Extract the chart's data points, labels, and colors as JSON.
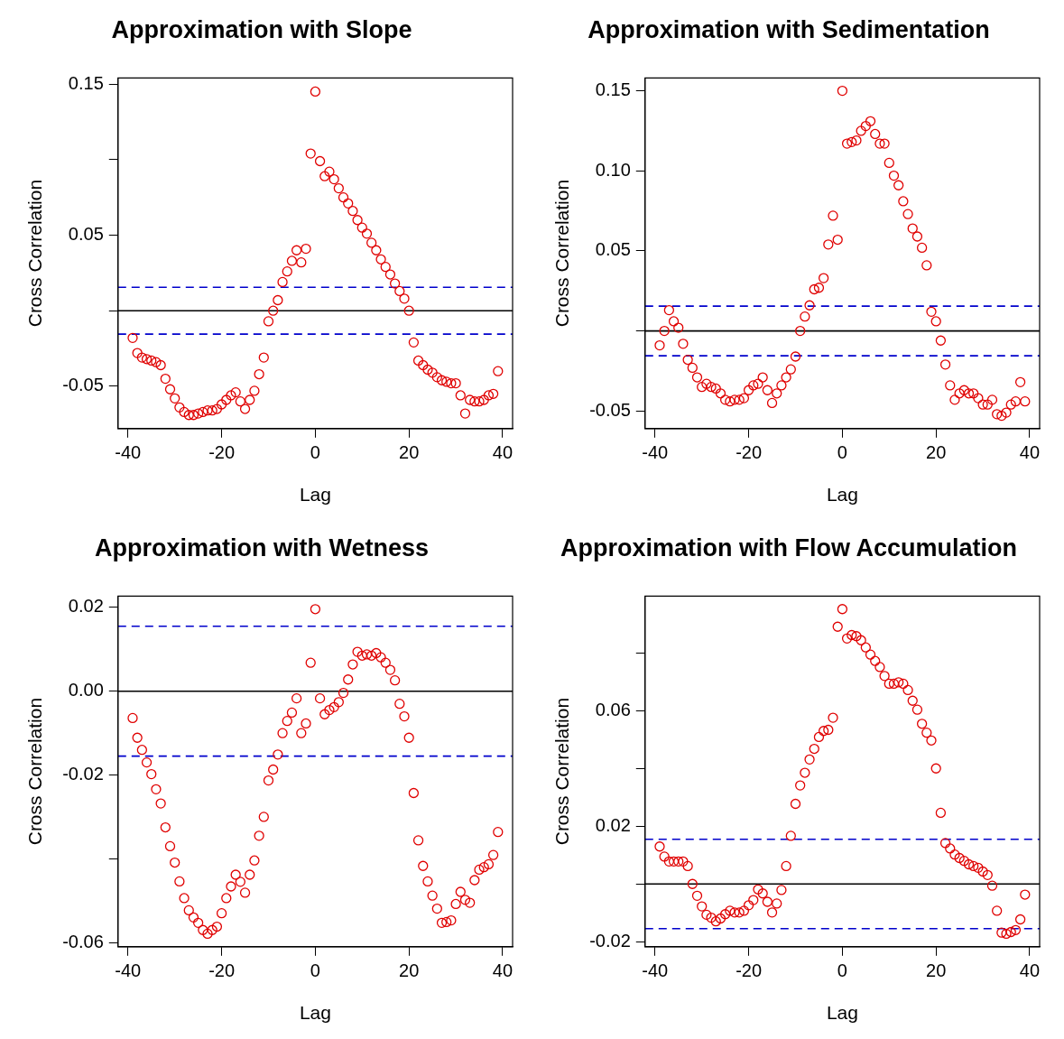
{
  "chart_data": [
    {
      "type": "scatter",
      "title": "Approximation with Slope",
      "xlabel": "Lag",
      "ylabel": "Cross Correlation",
      "marker": "circle",
      "grid": false,
      "x": [
        -39,
        -38,
        -37,
        -36,
        -35,
        -34,
        -33,
        -32,
        -31,
        -30,
        -29,
        -28,
        -27,
        -26,
        -25,
        -24,
        -23,
        -22,
        -21,
        -20,
        -19,
        -18,
        -17,
        -16,
        -15,
        -14,
        -13,
        -12,
        -11,
        -10,
        -9,
        -8,
        -7,
        -6,
        -5,
        -4,
        -3,
        -2,
        -1,
        0,
        1,
        2,
        3,
        4,
        5,
        6,
        7,
        8,
        9,
        10,
        11,
        12,
        13,
        14,
        15,
        16,
        17,
        18,
        19,
        20,
        21,
        22,
        23,
        24,
        25,
        26,
        27,
        28,
        29,
        30,
        31,
        32,
        33,
        34,
        35,
        36,
        37,
        38,
        39
      ],
      "xlim": [
        -42.12,
        42.12
      ],
      "xticks": [
        -40,
        -20,
        0,
        20,
        40
      ],
      "ylim": [
        -0.078,
        0.154
      ],
      "yticks": [
        {
          "value": -0.05,
          "label": "-0.05"
        },
        {
          "value": 0,
          "label": null
        },
        {
          "value": 0.05,
          "label": "0.05"
        },
        {
          "value": 0.1,
          "label": null
        },
        {
          "value": 0.15,
          "label": "0.15"
        }
      ],
      "ref_lines": [
        {
          "axis": "y",
          "value": 0,
          "color": "#000000",
          "line_style": "solid"
        },
        {
          "axis": "y",
          "value": 0.0155,
          "color": "#0000cc",
          "line_style": "dashed"
        },
        {
          "axis": "y",
          "value": -0.0155,
          "color": "#0000cc",
          "line_style": "dashed"
        }
      ],
      "series": [
        {
          "color": "#e00000",
          "values": [
            -0.018,
            -0.028,
            -0.031,
            -0.032,
            -0.033,
            -0.034,
            -0.036,
            -0.045,
            -0.052,
            -0.058,
            -0.064,
            -0.067,
            -0.069,
            -0.069,
            -0.068,
            -0.067,
            -0.066,
            -0.066,
            -0.065,
            -0.062,
            -0.059,
            -0.056,
            -0.054,
            -0.06,
            -0.065,
            -0.059,
            -0.053,
            -0.042,
            -0.031,
            -0.007,
            0.0,
            0.007,
            0.019,
            0.026,
            0.033,
            0.04,
            0.032,
            0.041,
            0.104,
            0.145,
            0.099,
            0.089,
            0.092,
            0.087,
            0.081,
            0.075,
            0.071,
            0.066,
            0.06,
            0.055,
            0.051,
            0.045,
            0.04,
            0.034,
            0.029,
            0.024,
            0.018,
            0.013,
            0.008,
            0.0,
            -0.021,
            -0.033,
            -0.036,
            -0.039,
            -0.041,
            -0.044,
            -0.046,
            -0.047,
            -0.048,
            -0.048,
            -0.056,
            -0.068,
            -0.059,
            -0.06,
            -0.06,
            -0.059,
            -0.056,
            -0.055,
            -0.04
          ]
        }
      ]
    },
    {
      "type": "scatter",
      "title": "Approximation with Sedimentation",
      "xlabel": "Lag",
      "ylabel": "Cross Correlation",
      "marker": "circle",
      "grid": false,
      "x": [
        -39,
        -38,
        -37,
        -36,
        -35,
        -34,
        -33,
        -32,
        -31,
        -30,
        -29,
        -28,
        -27,
        -26,
        -25,
        -24,
        -23,
        -22,
        -21,
        -20,
        -19,
        -18,
        -17,
        -16,
        -15,
        -14,
        -13,
        -12,
        -11,
        -10,
        -9,
        -8,
        -7,
        -6,
        -5,
        -4,
        -3,
        -2,
        -1,
        0,
        1,
        2,
        3,
        4,
        5,
        6,
        7,
        8,
        9,
        10,
        11,
        12,
        13,
        14,
        15,
        16,
        17,
        18,
        19,
        20,
        21,
        22,
        23,
        24,
        25,
        26,
        27,
        28,
        29,
        30,
        31,
        32,
        33,
        34,
        35,
        36,
        37,
        38,
        39
      ],
      "xlim": [
        -42.12,
        42.12
      ],
      "xticks": [
        -40,
        -20,
        0,
        20,
        40
      ],
      "ylim": [
        -0.061,
        0.158
      ],
      "yticks": [
        {
          "value": -0.05,
          "label": "-0.05"
        },
        {
          "value": 0,
          "label": null
        },
        {
          "value": 0.05,
          "label": "0.05"
        },
        {
          "value": 0.1,
          "label": "0.10"
        },
        {
          "value": 0.15,
          "label": "0.15"
        }
      ],
      "ref_lines": [
        {
          "axis": "y",
          "value": 0,
          "color": "#000000",
          "line_style": "solid"
        },
        {
          "axis": "y",
          "value": 0.0155,
          "color": "#0000cc",
          "line_style": "dashed"
        },
        {
          "axis": "y",
          "value": -0.0155,
          "color": "#0000cc",
          "line_style": "dashed"
        }
      ],
      "series": [
        {
          "color": "#e00000",
          "values": [
            -0.009,
            0.0,
            0.013,
            0.006,
            0.002,
            -0.008,
            -0.018,
            -0.023,
            -0.029,
            -0.035,
            -0.033,
            -0.035,
            -0.036,
            -0.039,
            -0.043,
            -0.044,
            -0.043,
            -0.043,
            -0.042,
            -0.037,
            -0.034,
            -0.033,
            -0.029,
            -0.037,
            -0.045,
            -0.039,
            -0.034,
            -0.029,
            -0.024,
            -0.016,
            0.0,
            0.009,
            0.016,
            0.026,
            0.027,
            0.033,
            0.054,
            0.072,
            0.057,
            0.15,
            0.117,
            0.118,
            0.119,
            0.125,
            0.128,
            0.131,
            0.123,
            0.117,
            0.117,
            0.105,
            0.097,
            0.091,
            0.081,
            0.073,
            0.064,
            0.059,
            0.052,
            0.041,
            0.012,
            0.006,
            -0.006,
            -0.021,
            -0.034,
            -0.043,
            -0.039,
            -0.037,
            -0.039,
            -0.039,
            -0.042,
            -0.046,
            -0.046,
            -0.043,
            -0.052,
            -0.053,
            -0.051,
            -0.046,
            -0.044,
            -0.032,
            -0.044
          ]
        }
      ]
    },
    {
      "type": "scatter",
      "title": "Approximation with Wetness",
      "xlabel": "Lag",
      "ylabel": "Cross Correlation",
      "marker": "circle",
      "grid": false,
      "x": [
        -39,
        -38,
        -37,
        -36,
        -35,
        -34,
        -33,
        -32,
        -31,
        -30,
        -29,
        -28,
        -27,
        -26,
        -25,
        -24,
        -23,
        -22,
        -21,
        -20,
        -19,
        -18,
        -17,
        -16,
        -15,
        -14,
        -13,
        -12,
        -11,
        -10,
        -9,
        -8,
        -7,
        -6,
        -5,
        -4,
        -3,
        -2,
        -1,
        0,
        1,
        2,
        3,
        4,
        5,
        6,
        7,
        8,
        9,
        10,
        11,
        12,
        13,
        14,
        15,
        16,
        17,
        18,
        19,
        20,
        21,
        22,
        23,
        24,
        25,
        26,
        27,
        28,
        29,
        30,
        31,
        32,
        33,
        34,
        35,
        36,
        37,
        38,
        39
      ],
      "xlim": [
        -42.12,
        42.12
      ],
      "xticks": [
        -40,
        -20,
        0,
        20,
        40
      ],
      "ylim": [
        -0.061,
        0.0227
      ],
      "yticks": [
        {
          "value": -0.06,
          "label": "-0.06"
        },
        {
          "value": -0.04,
          "label": null
        },
        {
          "value": -0.02,
          "label": "-0.02"
        },
        {
          "value": 0,
          "label": "0.00"
        },
        {
          "value": 0.02,
          "label": "0.02"
        }
      ],
      "ref_lines": [
        {
          "axis": "y",
          "value": 0,
          "color": "#000000",
          "line_style": "solid"
        },
        {
          "axis": "y",
          "value": 0.0155,
          "color": "#0000cc",
          "line_style": "dashed"
        },
        {
          "axis": "y",
          "value": -0.0155,
          "color": "#0000cc",
          "line_style": "dashed"
        }
      ],
      "series": [
        {
          "color": "#e00000",
          "values": [
            -0.0064,
            -0.0111,
            -0.014,
            -0.017,
            -0.0198,
            -0.0234,
            -0.0268,
            -0.0325,
            -0.037,
            -0.0409,
            -0.0454,
            -0.0494,
            -0.0523,
            -0.054,
            -0.0553,
            -0.057,
            -0.0579,
            -0.057,
            -0.0562,
            -0.053,
            -0.0494,
            -0.0466,
            -0.0438,
            -0.0455,
            -0.0481,
            -0.0438,
            -0.0404,
            -0.0345,
            -0.03,
            -0.0213,
            -0.0187,
            -0.0151,
            -0.01,
            -0.0071,
            -0.0051,
            -0.0017,
            -0.01,
            -0.0077,
            0.0068,
            0.0196,
            -0.0017,
            -0.0055,
            -0.0045,
            -0.0038,
            -0.0026,
            -0.0004,
            0.0028,
            0.0064,
            0.0094,
            0.0085,
            0.0088,
            0.0085,
            0.0091,
            0.0081,
            0.0068,
            0.0051,
            0.0026,
            -0.003,
            -0.006,
            -0.0111,
            -0.0243,
            -0.0356,
            -0.0417,
            -0.0454,
            -0.0488,
            -0.0519,
            -0.0553,
            -0.0551,
            -0.0547,
            -0.0508,
            -0.0479,
            -0.0498,
            -0.0505,
            -0.0451,
            -0.0426,
            -0.042,
            -0.0413,
            -0.0391,
            -0.0336
          ]
        }
      ]
    },
    {
      "type": "scatter",
      "title": "Approximation with Flow Accumulation",
      "xlabel": "Lag",
      "ylabel": "Cross Correlation",
      "marker": "circle",
      "grid": false,
      "x": [
        -39,
        -38,
        -37,
        -36,
        -35,
        -34,
        -33,
        -32,
        -31,
        -30,
        -29,
        -28,
        -27,
        -26,
        -25,
        -24,
        -23,
        -22,
        -21,
        -20,
        -19,
        -18,
        -17,
        -16,
        -15,
        -14,
        -13,
        -12,
        -11,
        -10,
        -9,
        -8,
        -7,
        -6,
        -5,
        -4,
        -3,
        -2,
        -1,
        0,
        1,
        2,
        3,
        4,
        5,
        6,
        7,
        8,
        9,
        10,
        11,
        12,
        13,
        14,
        15,
        16,
        17,
        18,
        19,
        20,
        21,
        22,
        23,
        24,
        25,
        26,
        27,
        28,
        29,
        30,
        31,
        32,
        33,
        34,
        35,
        36,
        37,
        38,
        39
      ],
      "xlim": [
        -42.12,
        42.12
      ],
      "xticks": [
        -40,
        -20,
        0,
        20,
        40
      ],
      "ylim": [
        -0.0218,
        0.0999
      ],
      "yticks": [
        {
          "value": -0.02,
          "label": "-0.02"
        },
        {
          "value": 0,
          "label": null
        },
        {
          "value": 0.02,
          "label": "0.02"
        },
        {
          "value": 0.04,
          "label": null
        },
        {
          "value": 0.06,
          "label": "0.06"
        },
        {
          "value": 0.08,
          "label": null
        }
      ],
      "ref_lines": [
        {
          "axis": "y",
          "value": 0,
          "color": "#000000",
          "line_style": "solid"
        },
        {
          "axis": "y",
          "value": 0.0155,
          "color": "#0000cc",
          "line_style": "dashed"
        },
        {
          "axis": "y",
          "value": -0.0155,
          "color": "#0000cc",
          "line_style": "dashed"
        }
      ],
      "series": [
        {
          "color": "#e00000",
          "values": [
            0.013,
            0.0095,
            0.0078,
            0.0078,
            0.0078,
            0.0078,
            0.0062,
            0.0,
            -0.0041,
            -0.0078,
            -0.0107,
            -0.0117,
            -0.013,
            -0.012,
            -0.0105,
            -0.0093,
            -0.0099,
            -0.0099,
            -0.0093,
            -0.0074,
            -0.0056,
            -0.0019,
            -0.0033,
            -0.0062,
            -0.0099,
            -0.0068,
            -0.0021,
            0.0062,
            0.0167,
            0.0278,
            0.0342,
            0.0386,
            0.0432,
            0.0469,
            0.051,
            0.0531,
            0.0535,
            0.0577,
            0.0893,
            0.0954,
            0.0852,
            0.0864,
            0.086,
            0.0846,
            0.0821,
            0.0796,
            0.0774,
            0.0753,
            0.0722,
            0.0695,
            0.0695,
            0.07,
            0.0695,
            0.0673,
            0.0636,
            0.0605,
            0.0556,
            0.0525,
            0.0498,
            0.0401,
            0.0247,
            0.0142,
            0.0123,
            0.0102,
            0.009,
            0.008,
            0.0068,
            0.0062,
            0.0056,
            0.0043,
            0.0031,
            -0.0006,
            -0.0093,
            -0.0169,
            -0.0173,
            -0.0167,
            -0.016,
            -0.0123,
            -0.0037
          ]
        }
      ]
    }
  ]
}
